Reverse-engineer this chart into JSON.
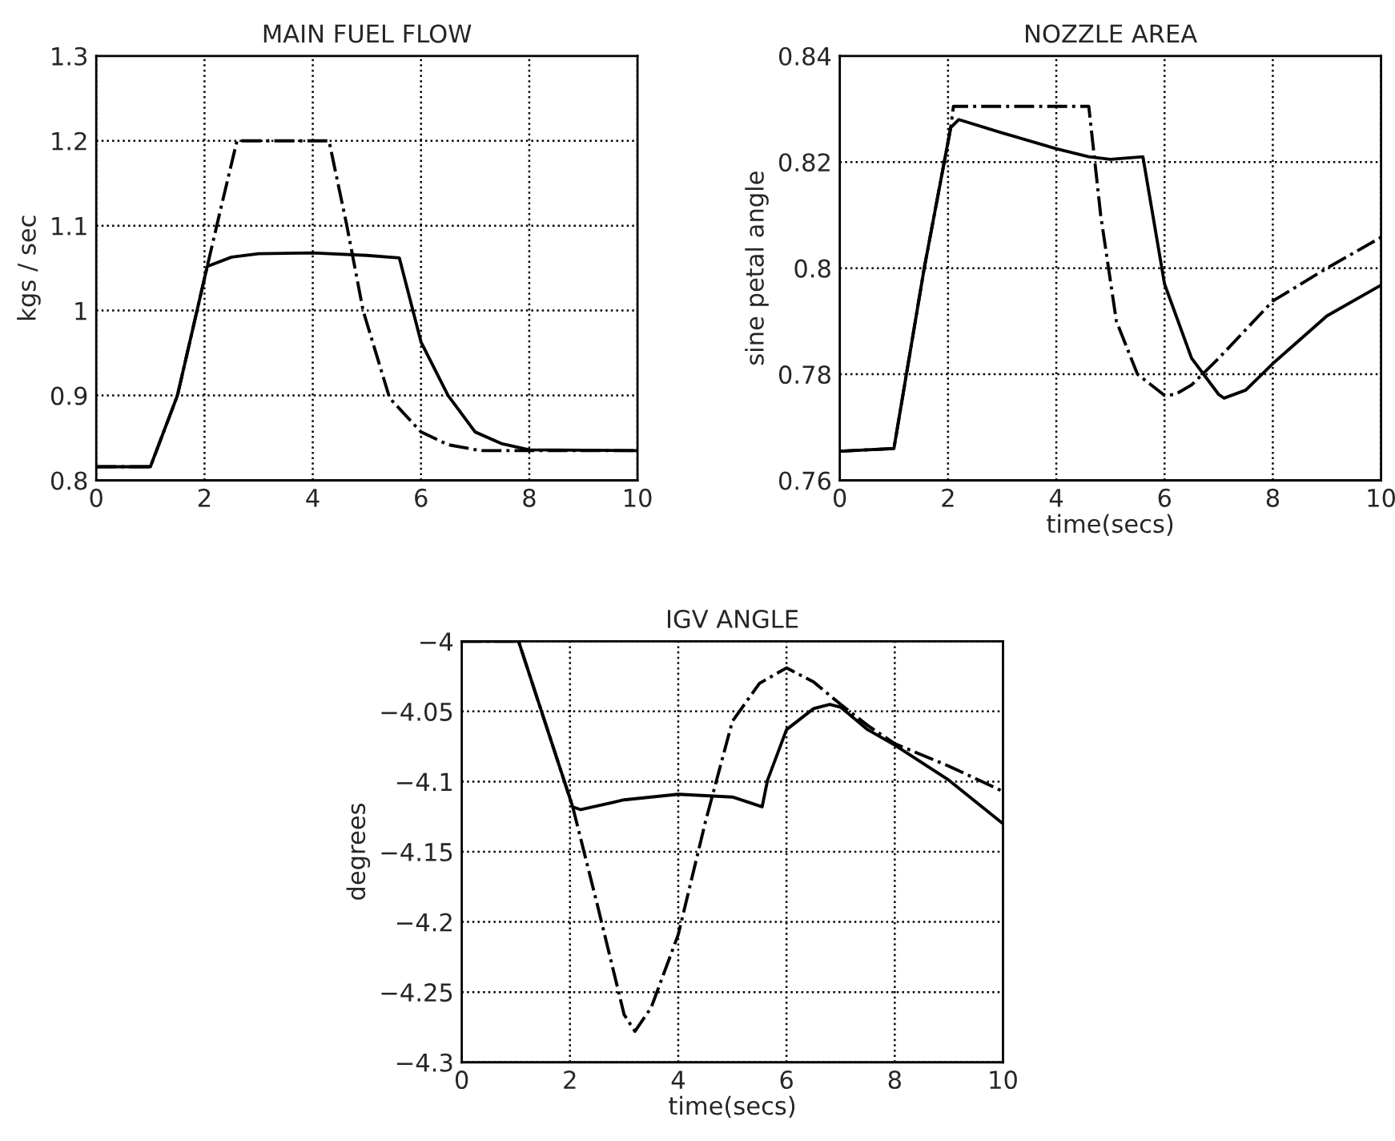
{
  "chart_data": [
    {
      "type": "line",
      "title": "MAIN FUEL FLOW",
      "ylabel": "kgs / sec",
      "xlim": [
        0,
        10
      ],
      "xticks": [
        0,
        2,
        4,
        6,
        8,
        10
      ],
      "ylim": [
        0.8,
        1.3
      ],
      "yticks": [
        0.8,
        0.9,
        1,
        1.1,
        1.2,
        1.3
      ],
      "grid": true,
      "series": [
        {
          "color": "#000000",
          "line_style": "solid",
          "x": [
            0,
            1,
            1.5,
            2.05,
            2.5,
            3,
            4,
            5,
            5.6,
            6,
            6.5,
            7,
            7.5,
            8,
            10
          ],
          "values": [
            0.816,
            0.816,
            0.9,
            1.052,
            1.063,
            1.067,
            1.068,
            1.065,
            1.062,
            0.963,
            0.9,
            0.857,
            0.843,
            0.836,
            0.835
          ]
        },
        {
          "color": "#000000",
          "line_style": "dashdot",
          "x": [
            0,
            1,
            1.5,
            2.05,
            2.3,
            2.6,
            4.3,
            4.63,
            4.93,
            5.42,
            6,
            6.5,
            7.1,
            8,
            10
          ],
          "values": [
            0.816,
            0.816,
            0.9,
            1.052,
            1.12,
            1.2,
            1.2,
            1.1,
            1.0,
            0.897,
            0.857,
            0.842,
            0.835,
            0.835,
            0.835
          ]
        }
      ]
    },
    {
      "type": "line",
      "title": "NOZZLE AREA",
      "xlabel": "time(secs)",
      "ylabel": "sine petal angle",
      "xlim": [
        0,
        10
      ],
      "xticks": [
        0,
        2,
        4,
        6,
        8,
        10
      ],
      "ylim": [
        0.76,
        0.84
      ],
      "yticks": [
        0.76,
        0.78,
        0.8,
        0.82,
        0.84
      ],
      "grid": true,
      "series": [
        {
          "color": "#000000",
          "line_style": "solid",
          "x": [
            0,
            1,
            1.56,
            2.05,
            2.2,
            3,
            4,
            4.6,
            5,
            5.6,
            6,
            6.5,
            7,
            7.1,
            7.5,
            8,
            9,
            10
          ],
          "values": [
            0.7655,
            0.766,
            0.8,
            0.8265,
            0.828,
            0.8255,
            0.8225,
            0.821,
            0.8205,
            0.821,
            0.797,
            0.783,
            0.7762,
            0.7755,
            0.777,
            0.782,
            0.791,
            0.7968
          ]
        },
        {
          "color": "#000000",
          "line_style": "dashdot",
          "x": [
            0,
            1,
            1.56,
            2.05,
            2.1,
            4.6,
            4.82,
            5.11,
            5.5,
            6,
            6.2,
            6.5,
            7,
            8,
            9,
            10
          ],
          "values": [
            0.7655,
            0.766,
            0.8,
            0.8265,
            0.8305,
            0.8305,
            0.81,
            0.79,
            0.78,
            0.776,
            0.7762,
            0.778,
            0.783,
            0.7938,
            0.8,
            0.8058
          ]
        }
      ]
    },
    {
      "type": "line",
      "title": "IGV ANGLE",
      "xlabel": "time(secs)",
      "ylabel": "degrees",
      "xlim": [
        0,
        10
      ],
      "xticks": [
        0,
        2,
        4,
        6,
        8,
        10
      ],
      "ylim": [
        -4.3,
        -4
      ],
      "yticks": [
        {
          "value": -4.3,
          "label": "−4.3"
        },
        {
          "value": -4.25,
          "label": "−4.25"
        },
        {
          "value": -4.2,
          "label": "−4.2"
        },
        {
          "value": -4.15,
          "label": "−4.15"
        },
        {
          "value": -4.1,
          "label": "−4.1"
        },
        {
          "value": -4.05,
          "label": "−4.05"
        },
        {
          "value": -4,
          "label": "−4"
        }
      ],
      "grid": true,
      "series": [
        {
          "color": "#000000",
          "line_style": "solid",
          "x": [
            0,
            1.05,
            2.05,
            2.2,
            3,
            4,
            5,
            5.55,
            5.65,
            6,
            6.5,
            6.8,
            7,
            7.5,
            8,
            9,
            10
          ],
          "values": [
            -4,
            -4,
            -4.118,
            -4.12,
            -4.113,
            -4.109,
            -4.111,
            -4.118,
            -4.099,
            -4.063,
            -4.048,
            -4.045,
            -4.047,
            -4.063,
            -4.074,
            -4.099,
            -4.13
          ]
        },
        {
          "color": "#000000",
          "line_style": "dashdot",
          "x": [
            0,
            1.05,
            2.05,
            2.5,
            3,
            3.2,
            3.5,
            4,
            4.5,
            5,
            5.5,
            6,
            6.5,
            7,
            7.5,
            8,
            9,
            10
          ],
          "values": [
            -4,
            -4,
            -4.118,
            -4.187,
            -4.266,
            -4.278,
            -4.261,
            -4.209,
            -4.129,
            -4.057,
            -4.03,
            -4.019,
            -4.029,
            -4.045,
            -4.06,
            -4.073,
            -4.089,
            -4.107
          ]
        }
      ]
    }
  ]
}
